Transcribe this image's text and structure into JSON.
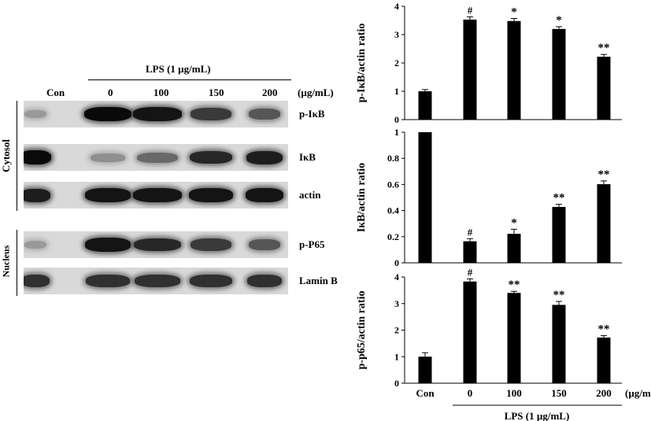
{
  "western_blot": {
    "lane_labels": [
      "Con",
      "0",
      "100",
      "150",
      "200"
    ],
    "unit_label": "(µg/mL)",
    "treatment_label": "LPS (1 µg/mL)",
    "group_labels": {
      "cytosol": "Cytosol",
      "nucleus": "Nucleus"
    },
    "rows": [
      {
        "label": "p-IκB",
        "intensity": [
          0.25,
          1.0,
          0.95,
          0.75,
          0.6
        ]
      },
      {
        "label": "IκB",
        "intensity": [
          1.0,
          0.3,
          0.5,
          0.85,
          0.9
        ]
      },
      {
        "label": "actin",
        "intensity": [
          0.9,
          0.95,
          0.95,
          0.95,
          0.95
        ]
      },
      {
        "label": "p-P65",
        "intensity": [
          0.25,
          0.95,
          0.85,
          0.75,
          0.6
        ]
      },
      {
        "label": "Lamin B",
        "intensity": [
          0.8,
          0.8,
          0.8,
          0.8,
          0.8
        ]
      }
    ]
  },
  "chart_data": [
    {
      "type": "bar",
      "categories": [
        "Con",
        "0",
        "100",
        "150",
        "200"
      ],
      "values": [
        1.0,
        3.53,
        3.48,
        3.2,
        2.22
      ],
      "errors": [
        0.06,
        0.1,
        0.09,
        0.08,
        0.08
      ],
      "annotations": [
        "",
        "#",
        "*",
        "*",
        "**"
      ],
      "ylabel": "p-IκB/actin ratio",
      "ylim": [
        0,
        4
      ],
      "yticks": [
        "0",
        "1",
        "2",
        "3",
        "4"
      ],
      "bar_color": "#000000"
    },
    {
      "type": "bar",
      "categories": [
        "Con",
        "0",
        "100",
        "150",
        "200"
      ],
      "values": [
        1.0,
        0.165,
        0.222,
        0.428,
        0.602
      ],
      "errors": [
        0.0,
        0.02,
        0.035,
        0.02,
        0.025
      ],
      "annotations": [
        "",
        "#",
        "*",
        "**",
        "**"
      ],
      "ylabel": "IκB/actin ratio",
      "ylim": [
        0,
        1
      ],
      "yticks": [
        "0",
        "0.2",
        "0.4",
        "0.6",
        "0.8",
        "1"
      ],
      "bar_color": "#000000"
    },
    {
      "type": "bar",
      "categories": [
        "Con",
        "0",
        "100",
        "150",
        "200"
      ],
      "values": [
        1.0,
        3.83,
        3.4,
        2.95,
        1.72
      ],
      "errors": [
        0.15,
        0.1,
        0.06,
        0.13,
        0.07
      ],
      "annotations": [
        "",
        "#",
        "**",
        "**",
        "**"
      ],
      "ylabel": "p-p65/actin ratio",
      "ylim": [
        0,
        4
      ],
      "yticks": [
        "0",
        "1",
        "2",
        "3",
        "4"
      ],
      "xunit": "(µg/mL)",
      "xgroup_label": "LPS (1 µg/mL)",
      "bar_color": "#000000"
    }
  ]
}
